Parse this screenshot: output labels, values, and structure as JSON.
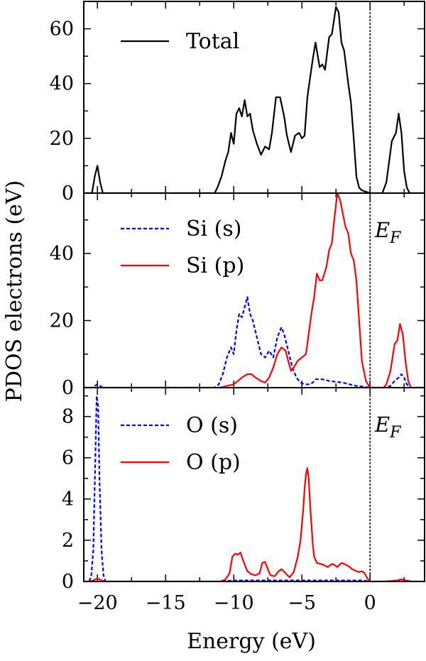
{
  "chart_data": [
    {
      "type": "line",
      "panel": "total",
      "xlabel": "Energy (eV)",
      "ylabel": "PDOS electrons (eV)",
      "xlim": [
        -21,
        4
      ],
      "ylim": [
        0,
        70
      ],
      "yticks": [
        0,
        20,
        40,
        60
      ],
      "annotation": "",
      "series": [
        {
          "name": "Total",
          "color": "#000000",
          "dash": "solid",
          "x": [
            -21.0,
            -20.4,
            -20.2,
            -20.0,
            -19.8,
            -19.6,
            -11.4,
            -11.2,
            -10.9,
            -10.6,
            -10.4,
            -10.2,
            -10.0,
            -9.8,
            -9.6,
            -9.4,
            -9.2,
            -9.0,
            -8.8,
            -8.6,
            -8.3,
            -8.0,
            -7.7,
            -7.4,
            -7.2,
            -6.9,
            -6.6,
            -6.3,
            -6.1,
            -5.8,
            -5.5,
            -5.2,
            -5.0,
            -4.8,
            -4.6,
            -4.4,
            -4.2,
            -4.0,
            -3.7,
            -3.5,
            -3.3,
            -3.0,
            -2.8,
            -2.5,
            -2.3,
            -2.1,
            -1.9,
            -1.6,
            -1.4,
            -1.2,
            -1.0,
            -0.8,
            -0.6,
            -0.3,
            0.0,
            0.3,
            0.6,
            0.9,
            1.2,
            1.6,
            1.9,
            2.1,
            2.3,
            2.5,
            2.7,
            2.9,
            3.2,
            4.0
          ],
          "values": [
            0,
            0,
            6,
            10,
            4,
            0,
            0,
            2,
            6,
            12,
            15,
            22,
            18,
            29,
            31,
            28,
            34,
            28,
            29,
            23,
            18,
            14,
            17,
            16,
            22,
            35,
            35,
            28,
            21,
            15,
            21,
            22,
            20,
            21,
            35,
            42,
            49,
            55,
            46,
            47,
            45,
            57,
            58,
            68,
            66,
            55,
            52,
            40,
            33,
            20,
            6,
            2,
            1,
            0.5,
            0,
            0,
            0,
            0,
            4,
            19,
            22,
            29,
            22,
            8,
            2,
            0,
            0,
            0
          ]
        }
      ]
    },
    {
      "type": "line",
      "panel": "si",
      "xlabel": "Energy (eV)",
      "ylabel": "PDOS electrons (eV)",
      "xlim": [
        -21,
        4
      ],
      "ylim": [
        0,
        58
      ],
      "yticks": [
        0,
        20,
        40
      ],
      "annotation": "E",
      "annotation_sub": "F",
      "series": [
        {
          "name": "Si (s)",
          "color": "#0000ff",
          "dash": "dashed",
          "x": [
            -21.0,
            -20.4,
            -20.2,
            -20.0,
            -19.8,
            -19.6,
            -11.4,
            -11.1,
            -10.8,
            -10.5,
            -10.2,
            -10.0,
            -9.8,
            -9.6,
            -9.4,
            -9.2,
            -9.0,
            -8.8,
            -8.6,
            -8.3,
            -8.0,
            -7.7,
            -7.4,
            -7.1,
            -6.8,
            -6.5,
            -6.3,
            -6.0,
            -5.7,
            -5.4,
            -5.1,
            -4.8,
            -4.5,
            -4.2,
            -4.0,
            -3.5,
            -3.0,
            -2.0,
            -1.5,
            -1.0,
            -0.5,
            0.0,
            0.5,
            1.0,
            1.5,
            1.8,
            2.1,
            2.3,
            2.5,
            2.7,
            3.0,
            4.0
          ],
          "values": [
            0,
            0,
            0.5,
            1,
            0.5,
            0,
            0,
            1,
            4,
            9,
            12,
            10,
            17,
            22,
            21,
            24,
            27,
            22,
            20,
            15,
            10,
            9,
            11,
            9,
            15,
            18,
            16,
            11,
            6,
            3,
            1.5,
            1,
            1,
            1.5,
            2.5,
            2.5,
            2,
            1.5,
            1,
            0.5,
            0.3,
            0,
            0,
            0,
            0.5,
            2,
            3,
            4,
            3,
            1,
            0,
            0
          ]
        },
        {
          "name": "Si (p)",
          "color": "#ff0000",
          "dash": "solid",
          "x": [
            -21.0,
            -11.0,
            -10.5,
            -10.0,
            -9.7,
            -9.4,
            -9.0,
            -8.7,
            -8.4,
            -8.0,
            -7.7,
            -7.4,
            -7.1,
            -6.8,
            -6.5,
            -6.2,
            -6.0,
            -5.8,
            -5.6,
            -5.3,
            -5.0,
            -4.7,
            -4.5,
            -4.3,
            -4.1,
            -3.9,
            -3.7,
            -3.5,
            -3.2,
            -3.0,
            -2.8,
            -2.6,
            -2.4,
            -2.2,
            -2.0,
            -1.8,
            -1.6,
            -1.4,
            -1.2,
            -1.0,
            -0.8,
            -0.6,
            -0.3,
            0.0,
            0.5,
            1.0,
            1.2,
            1.5,
            1.8,
            2.0,
            2.2,
            2.4,
            2.6,
            2.8,
            3.0,
            4.0
          ],
          "values": [
            0,
            0,
            0.5,
            1,
            2,
            3,
            4,
            4,
            3,
            2,
            1.5,
            3,
            6,
            10,
            12,
            11,
            8,
            5,
            6,
            8,
            9,
            10,
            16,
            22,
            27,
            34,
            32,
            32,
            36,
            41,
            43,
            51,
            58,
            56,
            52,
            48,
            46,
            40,
            38,
            32,
            20,
            8,
            2,
            0,
            0,
            0,
            1,
            5,
            13,
            14,
            19,
            16,
            8,
            2,
            0,
            0
          ]
        }
      ]
    },
    {
      "type": "line",
      "panel": "o",
      "xlabel": "Energy (eV)",
      "ylabel": "PDOS electrons (eV)",
      "xlim": [
        -21,
        4
      ],
      "ylim": [
        0,
        9.4
      ],
      "yticks": [
        0,
        2,
        4,
        6,
        8
      ],
      "xticks": [
        -20,
        -15,
        -10,
        -5,
        0
      ],
      "xtick_labels": [
        "−20",
        "−15",
        "−10",
        "−5",
        "0"
      ],
      "annotation": "E",
      "annotation_sub": "F",
      "series": [
        {
          "name": "O (s)",
          "color": "#0000ff",
          "dash": "dashed",
          "x": [
            -21.0,
            -20.6,
            -20.45,
            -20.3,
            -20.15,
            -20.05,
            -19.95,
            -19.85,
            -19.7,
            -19.55,
            -19.4,
            -11.0,
            -10.0,
            -8.0,
            -6.0,
            -5.0,
            -4.0,
            -2.0,
            -0.5,
            0.0,
            1.5,
            2.0,
            2.3,
            2.6,
            3.0,
            4.0
          ],
          "values": [
            0,
            0,
            0.3,
            1.5,
            6,
            9,
            8.5,
            5,
            1.5,
            0.3,
            0,
            0,
            0.05,
            0.05,
            0.05,
            0.05,
            0.05,
            0.05,
            0.05,
            0,
            0,
            0.05,
            0.1,
            0.05,
            0,
            0
          ]
        },
        {
          "name": "O (p)",
          "color": "#ff0000",
          "dash": "solid",
          "x": [
            -21.0,
            -20.6,
            -20.3,
            -20.0,
            -19.7,
            -19.4,
            -11.0,
            -10.6,
            -10.3,
            -10.1,
            -9.9,
            -9.7,
            -9.5,
            -9.3,
            -9.0,
            -8.7,
            -8.4,
            -8.1,
            -7.9,
            -7.7,
            -7.5,
            -7.3,
            -7.0,
            -6.7,
            -6.5,
            -6.2,
            -5.9,
            -5.6,
            -5.3,
            -5.1,
            -4.9,
            -4.8,
            -4.7,
            -4.6,
            -4.5,
            -4.4,
            -4.3,
            -4.2,
            -4.1,
            -3.9,
            -3.6,
            -3.4,
            -3.1,
            -2.8,
            -2.6,
            -2.4,
            -2.1,
            -1.9,
            -1.6,
            -1.3,
            -1.0,
            -0.8,
            -0.6,
            -0.4,
            -0.2,
            0.0,
            0.5,
            1.0,
            1.5,
            2.0,
            2.3,
            2.6,
            3.0,
            4.0
          ],
          "values": [
            0,
            0,
            0.05,
            0.15,
            0.05,
            0,
            0,
            0.1,
            0.4,
            1.2,
            1.35,
            1.3,
            1.4,
            1.0,
            0.5,
            0.35,
            0.3,
            0.4,
            0.9,
            0.95,
            0.6,
            0.3,
            0.25,
            0.5,
            0.6,
            0.4,
            0.2,
            0.45,
            1.2,
            2.0,
            3.5,
            4.5,
            5.2,
            5.5,
            5.0,
            3.8,
            2.8,
            1.8,
            1.2,
            0.9,
            0.85,
            0.8,
            0.7,
            0.85,
            0.8,
            0.7,
            0.9,
            0.85,
            0.75,
            0.6,
            0.5,
            0.45,
            0.5,
            0.4,
            0.15,
            0,
            0,
            0,
            0.02,
            0.05,
            0.1,
            0.05,
            0,
            0
          ]
        }
      ]
    }
  ]
}
